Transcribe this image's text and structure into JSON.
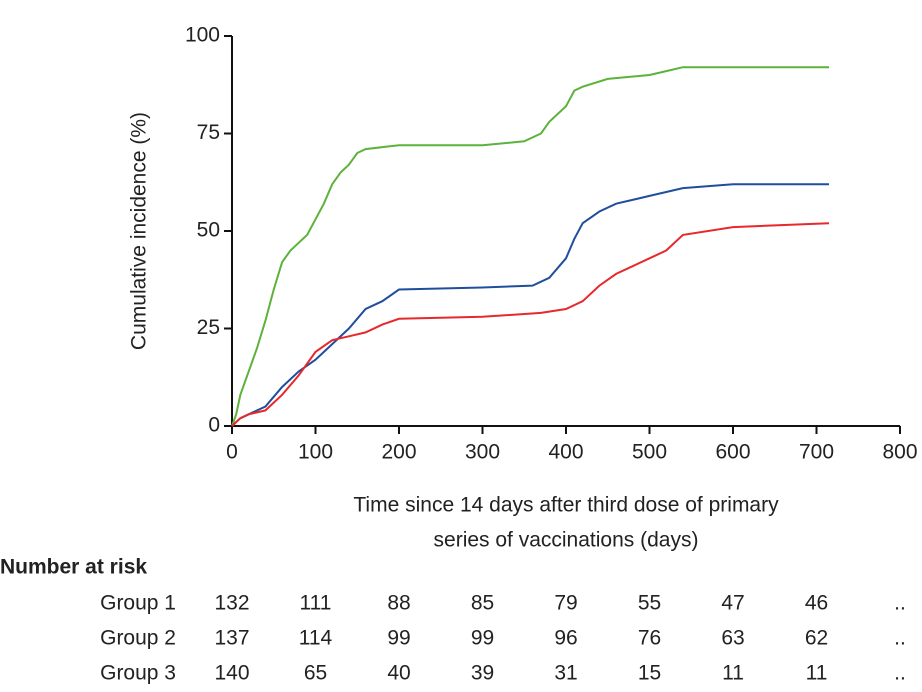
{
  "chart_data": {
    "type": "line",
    "ylabel": "Cumulative incidence (%)",
    "xlabel": [
      "Time since 14 days after third dose of primary",
      "series of vaccinations (days)"
    ],
    "xlim": [
      0,
      800
    ],
    "xticks": [
      0,
      100,
      200,
      300,
      400,
      500,
      600,
      700,
      800
    ],
    "ylim": [
      0,
      100
    ],
    "yticks": [
      0,
      25,
      50,
      75,
      100
    ],
    "series": [
      {
        "color": "#5cb23a",
        "x": [
          0,
          5,
          10,
          20,
          30,
          40,
          50,
          60,
          70,
          80,
          90,
          100,
          110,
          120,
          130,
          140,
          150,
          160,
          200,
          300,
          350,
          370,
          380,
          400,
          410,
          420,
          450,
          500,
          520,
          540,
          600,
          715
        ],
        "values": [
          0,
          3,
          8,
          14,
          20,
          27,
          35,
          42,
          45,
          47,
          49,
          53,
          57,
          62,
          65,
          67,
          70,
          71,
          72,
          72,
          73,
          75,
          78,
          82,
          86,
          87,
          89,
          90,
          91,
          92,
          92,
          92
        ]
      },
      {
        "color": "#1f4e9c",
        "x": [
          0,
          10,
          20,
          40,
          60,
          80,
          100,
          120,
          140,
          160,
          180,
          200,
          300,
          360,
          380,
          400,
          410,
          420,
          440,
          460,
          500,
          540,
          600,
          715
        ],
        "values": [
          0,
          2,
          3,
          5,
          10,
          14,
          17,
          21,
          25,
          30,
          32,
          35,
          35.5,
          36,
          38,
          43,
          48,
          52,
          55,
          57,
          59,
          61,
          62,
          62
        ]
      },
      {
        "color": "#e8282b",
        "x": [
          0,
          10,
          20,
          40,
          60,
          80,
          100,
          120,
          140,
          160,
          180,
          200,
          300,
          370,
          400,
          420,
          440,
          460,
          500,
          520,
          540,
          600,
          715
        ],
        "values": [
          0,
          2,
          3,
          4,
          8,
          13,
          19,
          22,
          23,
          24,
          26,
          27.5,
          28,
          29,
          30,
          32,
          36,
          39,
          43,
          45,
          49,
          51,
          52
        ]
      }
    ],
    "risk_table": {
      "title": "Number at risk",
      "rows": [
        {
          "label": "Group 1",
          "values": [
            "132",
            "111",
            "88",
            "85",
            "79",
            "55",
            "47",
            "46",
            ".."
          ]
        },
        {
          "label": "Group 2",
          "values": [
            "137",
            "114",
            "99",
            "99",
            "96",
            "76",
            "63",
            "62",
            ".."
          ]
        },
        {
          "label": "Group 3",
          "values": [
            "140",
            "65",
            "40",
            "39",
            "31",
            "15",
            "11",
            "11",
            ".."
          ]
        }
      ]
    }
  }
}
